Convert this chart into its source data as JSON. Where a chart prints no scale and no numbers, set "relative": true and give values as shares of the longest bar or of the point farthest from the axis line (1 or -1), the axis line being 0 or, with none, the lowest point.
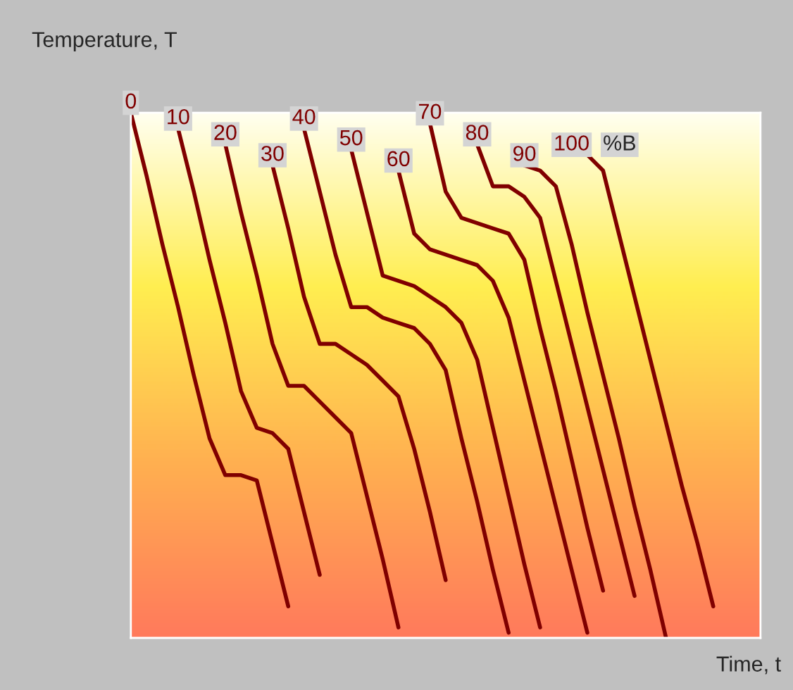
{
  "chart_data": {
    "type": "line",
    "relative": true,
    "ylabel": "Temperature, T",
    "xlabel": "Time, t",
    "legend_title": "%B",
    "line_style": "solid",
    "categories": [
      null,
      null,
      null,
      null,
      null,
      null,
      null,
      null,
      null,
      null,
      null,
      null,
      null,
      null,
      null,
      null,
      null,
      null,
      null,
      null,
      null,
      null,
      null,
      null,
      null,
      null,
      null,
      null,
      null,
      null,
      null,
      null,
      null,
      null,
      null,
      null,
      null,
      null,
      null,
      null,
      null
    ],
    "series": [
      {
        "name": "0",
        "color": "#800000",
        "values": [
          1.0,
          0.88,
          0.75,
          0.63,
          0.5,
          0.38,
          0.31,
          0.31,
          0.3,
          0.18,
          0.06,
          null,
          null,
          null,
          null,
          null,
          null,
          null,
          null,
          null,
          null,
          null,
          null,
          null,
          null,
          null,
          null,
          null,
          null,
          null,
          null,
          null,
          null,
          null,
          null,
          null,
          null,
          null,
          null,
          null,
          null
        ]
      },
      {
        "name": "10",
        "color": "#800000",
        "values": [
          null,
          null,
          null,
          0.97,
          0.85,
          0.72,
          0.6,
          0.47,
          0.4,
          0.39,
          0.36,
          0.24,
          0.12,
          null,
          null,
          null,
          null,
          null,
          null,
          null,
          null,
          null,
          null,
          null,
          null,
          null,
          null,
          null,
          null,
          null,
          null,
          null,
          null,
          null,
          null,
          null,
          null,
          null,
          null,
          null,
          null
        ]
      },
      {
        "name": "20",
        "color": "#800000",
        "values": [
          null,
          null,
          null,
          null,
          null,
          null,
          0.94,
          0.81,
          0.69,
          0.56,
          0.48,
          0.48,
          0.45,
          0.42,
          0.39,
          0.27,
          0.15,
          0.02,
          null,
          null,
          null,
          null,
          null,
          null,
          null,
          null,
          null,
          null,
          null,
          null,
          null,
          null,
          null,
          null,
          null,
          null,
          null,
          null,
          null,
          null,
          null
        ]
      },
      {
        "name": "30",
        "color": "#800000",
        "values": [
          null,
          null,
          null,
          null,
          null,
          null,
          null,
          null,
          null,
          0.9,
          0.78,
          0.65,
          0.56,
          0.56,
          0.54,
          0.52,
          0.49,
          0.46,
          0.36,
          0.24,
          0.11,
          null,
          null,
          null,
          null,
          null,
          null,
          null,
          null,
          null,
          null,
          null,
          null,
          null,
          null,
          null,
          null,
          null,
          null,
          null,
          null
        ]
      },
      {
        "name": "40",
        "color": "#800000",
        "values": [
          null,
          null,
          null,
          null,
          null,
          null,
          null,
          null,
          null,
          null,
          null,
          0.97,
          0.85,
          0.73,
          0.63,
          0.63,
          0.61,
          0.6,
          0.59,
          0.56,
          0.51,
          0.38,
          0.26,
          0.13,
          0.01,
          null,
          null,
          null,
          null,
          null,
          null,
          null,
          null,
          null,
          null,
          null,
          null,
          null,
          null,
          null,
          null
        ]
      },
      {
        "name": "50",
        "color": "#800000",
        "values": [
          null,
          null,
          null,
          null,
          null,
          null,
          null,
          null,
          null,
          null,
          null,
          null,
          null,
          null,
          0.93,
          0.81,
          0.69,
          0.68,
          0.67,
          0.65,
          0.63,
          0.6,
          0.53,
          0.4,
          0.27,
          0.14,
          0.02,
          null,
          null,
          null,
          null,
          null,
          null,
          null,
          null,
          null,
          null,
          null,
          null,
          null,
          null
        ]
      },
      {
        "name": "60",
        "color": "#800000",
        "values": [
          null,
          null,
          null,
          null,
          null,
          null,
          null,
          null,
          null,
          null,
          null,
          null,
          null,
          null,
          null,
          null,
          null,
          0.89,
          0.77,
          0.74,
          0.73,
          0.72,
          0.71,
          0.68,
          0.61,
          0.49,
          0.37,
          0.25,
          0.13,
          0.01,
          null,
          null,
          null,
          null,
          null,
          null,
          null,
          null,
          null,
          null,
          null
        ]
      },
      {
        "name": "70",
        "color": "#800000",
        "values": [
          null,
          null,
          null,
          null,
          null,
          null,
          null,
          null,
          null,
          null,
          null,
          null,
          null,
          null,
          null,
          null,
          null,
          null,
          null,
          0.98,
          0.85,
          0.8,
          0.79,
          0.78,
          0.77,
          0.72,
          0.59,
          0.47,
          0.34,
          0.21,
          0.09,
          null,
          null,
          null,
          null,
          null,
          null,
          null,
          null,
          null,
          null
        ]
      },
      {
        "name": "80",
        "color": "#800000",
        "values": [
          null,
          null,
          null,
          null,
          null,
          null,
          null,
          null,
          null,
          null,
          null,
          null,
          null,
          null,
          null,
          null,
          null,
          null,
          null,
          null,
          null,
          null,
          0.94,
          0.86,
          0.86,
          0.84,
          0.8,
          0.68,
          0.56,
          0.44,
          0.32,
          0.2,
          0.08,
          null,
          null,
          null,
          null,
          null,
          null,
          null,
          null
        ]
      },
      {
        "name": "90",
        "color": "#800000",
        "values": [
          null,
          null,
          null,
          null,
          null,
          null,
          null,
          null,
          null,
          null,
          null,
          null,
          null,
          null,
          null,
          null,
          null,
          null,
          null,
          null,
          null,
          null,
          null,
          null,
          null,
          0.9,
          0.89,
          0.86,
          0.75,
          0.62,
          0.5,
          0.38,
          0.25,
          0.13,
          0.0,
          null,
          null,
          null,
          null,
          null,
          null
        ]
      },
      {
        "name": "100",
        "color": "#800000",
        "values": [
          null,
          null,
          null,
          null,
          null,
          null,
          null,
          null,
          null,
          null,
          null,
          null,
          null,
          null,
          null,
          null,
          null,
          null,
          null,
          null,
          null,
          null,
          null,
          null,
          null,
          null,
          null,
          null,
          0.92,
          0.92,
          0.89,
          0.77,
          0.65,
          0.53,
          0.41,
          0.29,
          0.18,
          0.06,
          null,
          null,
          null
        ]
      }
    ]
  }
}
